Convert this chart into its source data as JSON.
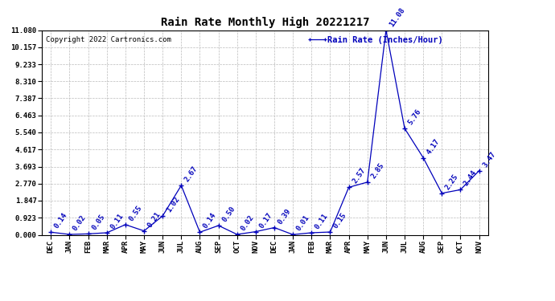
{
  "title": "Rain Rate Monthly High 20221217",
  "copyright": "Copyright 2022 Cartronics.com",
  "legend_label": "Rain Rate (Inches/Hour)",
  "x_labels": [
    "DEC",
    "JAN",
    "FEB",
    "MAR",
    "APR",
    "MAY",
    "JUN",
    "JUL",
    "AUG",
    "SEP",
    "OCT",
    "NOV",
    "DEC",
    "JAN",
    "FEB",
    "MAR",
    "APR",
    "MAY",
    "JUN",
    "JUL",
    "AUG",
    "SEP",
    "OCT",
    "NOV"
  ],
  "y_values": [
    0.14,
    0.02,
    0.05,
    0.11,
    0.55,
    0.21,
    1.02,
    2.67,
    0.14,
    0.5,
    0.02,
    0.17,
    0.39,
    0.01,
    0.11,
    0.15,
    2.57,
    2.85,
    11.08,
    5.76,
    4.17,
    2.25,
    2.44,
    3.47
  ],
  "y_annotations": [
    "0.14",
    "0.02",
    "0.05",
    "0.11",
    "0.55",
    "0.21",
    "1.02",
    "2.67",
    "0.14",
    "0.50",
    "0.02",
    "0.17",
    "0.39",
    "0.01",
    "0.11",
    "0.15",
    "2.57",
    "2.85",
    "11.08",
    "5.76",
    "4.17",
    "2.25",
    "2.44",
    "3.47"
  ],
  "ylim": [
    0.0,
    11.08
  ],
  "yticks": [
    0.0,
    0.923,
    1.847,
    2.77,
    3.693,
    4.617,
    5.54,
    6.463,
    7.387,
    8.31,
    9.233,
    10.157,
    11.08
  ],
  "ytick_labels": [
    "0.000",
    "0.923",
    "1.847",
    "2.770",
    "3.693",
    "4.617",
    "5.540",
    "6.463",
    "7.387",
    "8.310",
    "9.233",
    "10.157",
    "11.080"
  ],
  "line_color": "#0000bb",
  "background_color": "#ffffff",
  "grid_color": "#bbbbbb",
  "title_fontsize": 10,
  "tick_fontsize": 6.5,
  "annotation_fontsize": 6.5,
  "copyright_fontsize": 6.5,
  "legend_fontsize": 7.5
}
